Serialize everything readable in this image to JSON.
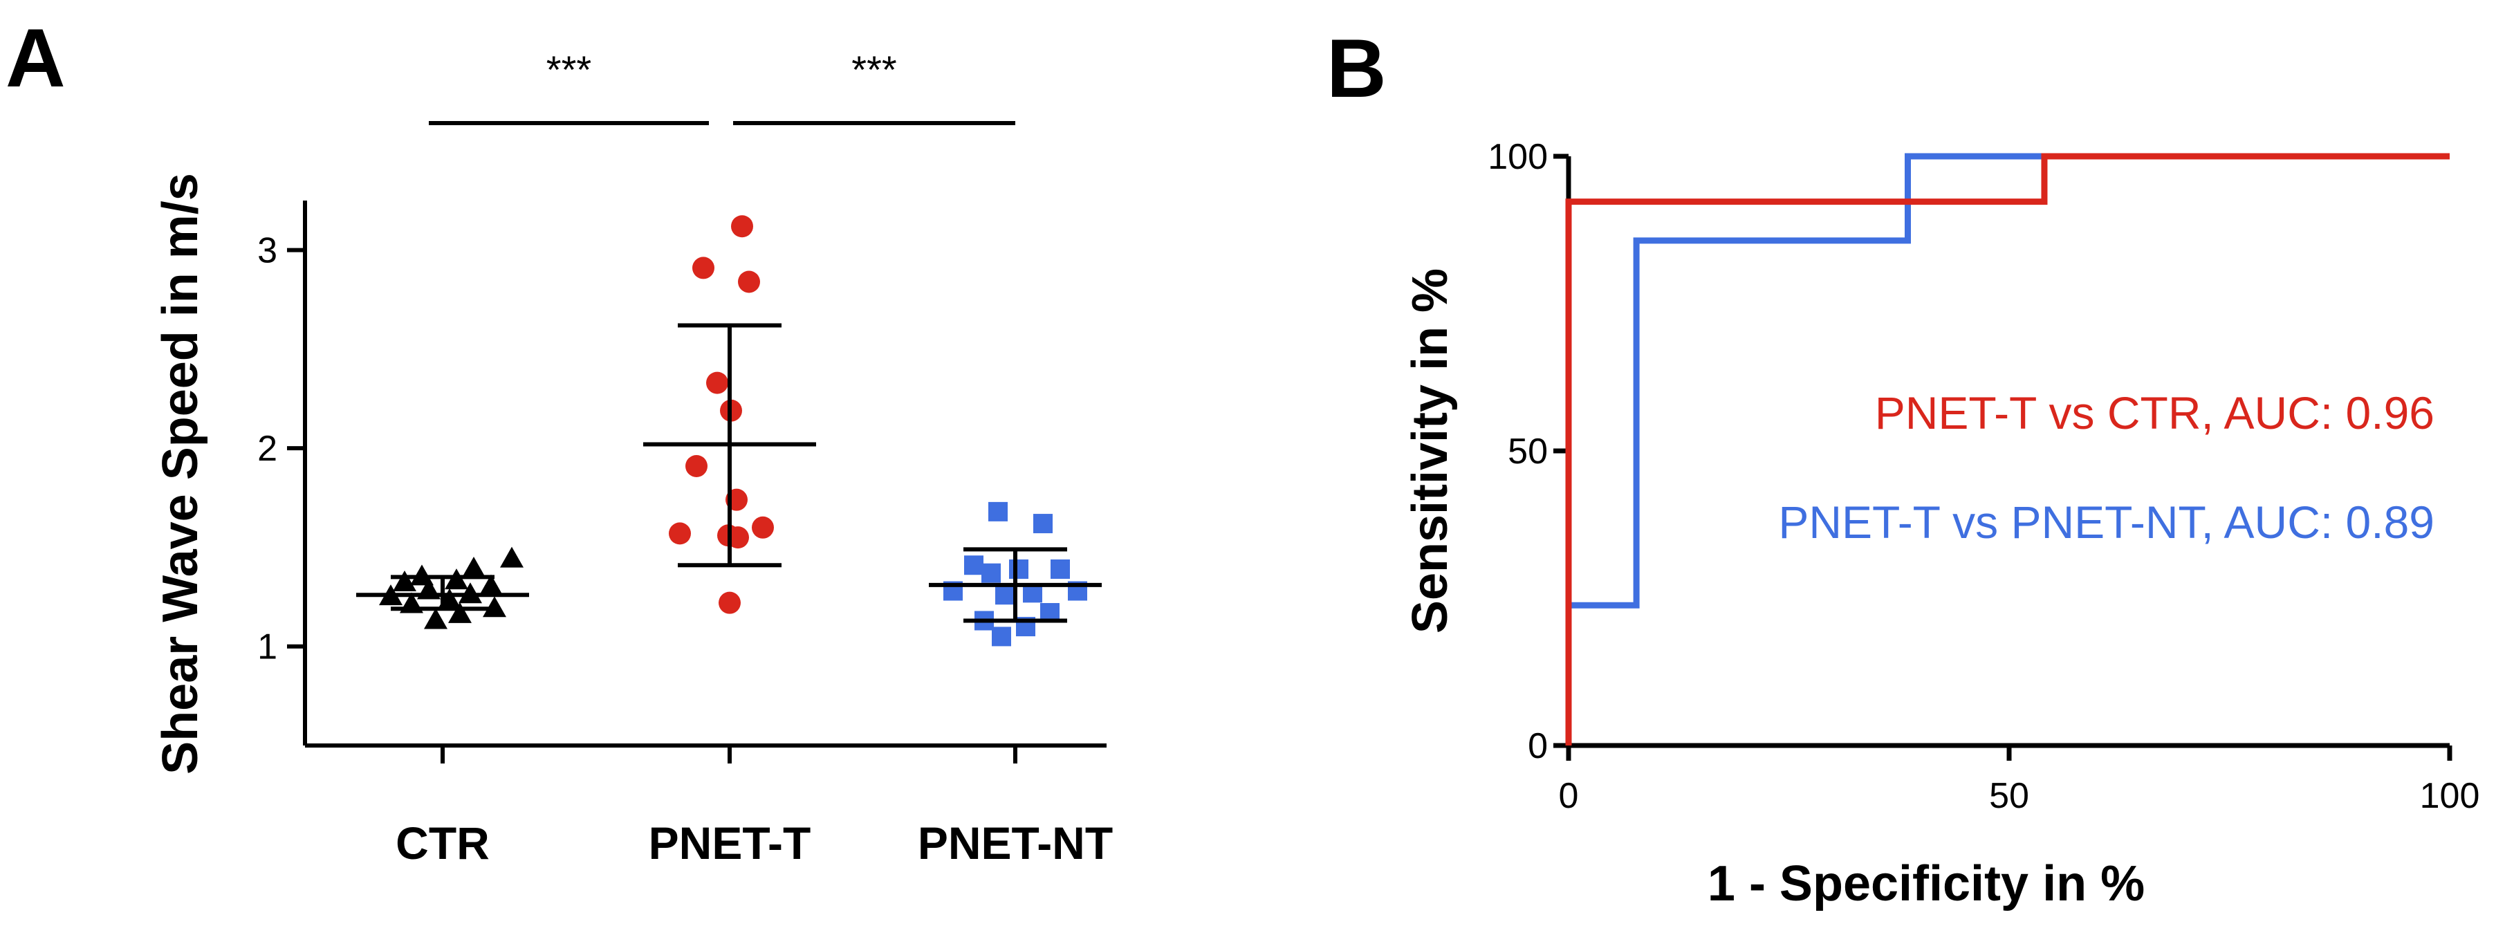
{
  "panels": {
    "a": {
      "letter": "A"
    },
    "b": {
      "letter": "B"
    }
  },
  "colors": {
    "ctr": "#000000",
    "pnet_t": "#d9261c",
    "pnet_nt": "#3f6fe0"
  },
  "chart_data": [
    {
      "type": "scatter",
      "panel": "A",
      "ylabel": "Shear Wave Speed in m/s",
      "xlabel": "",
      "ylim": [
        0.5,
        3.25
      ],
      "yticks": [
        1,
        2,
        3
      ],
      "categories": [
        "CTR",
        "PNET-T",
        "PNET-NT"
      ],
      "series": [
        {
          "category": "CTR",
          "marker": "triangle",
          "color": "#000000",
          "values": [
            1.39,
            1.35,
            1.33,
            1.32,
            1.3,
            1.28,
            1.26,
            1.25,
            1.23,
            1.21,
            1.19,
            1.16,
            1.13,
            1.44
          ],
          "mean": 1.26,
          "sd_low": 1.19,
          "sd_high": 1.35
        },
        {
          "category": "PNET-T",
          "marker": "circle",
          "color": "#d9261c",
          "values": [
            3.12,
            2.91,
            2.84,
            2.33,
            2.19,
            1.91,
            1.74,
            1.6,
            1.57,
            1.56,
            1.55,
            1.22
          ],
          "mean": 2.02,
          "sd_low": 1.41,
          "sd_high": 2.62
        },
        {
          "category": "PNET-NT",
          "marker": "square",
          "color": "#3f6fe0",
          "values": [
            1.68,
            1.62,
            1.41,
            1.39,
            1.39,
            1.37,
            1.28,
            1.28,
            1.27,
            1.26,
            1.17,
            1.13,
            1.1,
            1.05
          ],
          "mean": 1.31,
          "sd_low": 1.13,
          "sd_high": 1.49
        }
      ],
      "comparisons": [
        {
          "from": "CTR",
          "to": "PNET-T",
          "label": "***"
        },
        {
          "from": "PNET-T",
          "to": "PNET-NT",
          "label": "***"
        }
      ]
    },
    {
      "type": "line",
      "panel": "B",
      "xlabel": "1 - Specificity in %",
      "ylabel": "Sensitivity in %",
      "xlim": [
        0,
        100
      ],
      "ylim": [
        0,
        100
      ],
      "xticks": [
        0,
        50,
        100
      ],
      "yticks": [
        0,
        50,
        100
      ],
      "series": [
        {
          "label": "PNET-T vs CTR, AUC: 0.96",
          "color": "#d9261c",
          "x": [
            0,
            0,
            54,
            54,
            100
          ],
          "y": [
            0,
            92.3,
            92.3,
            100,
            100
          ]
        },
        {
          "label": "PNET-T vs PNET-NT, AUC: 0.89",
          "color": "#3f6fe0",
          "x": [
            0,
            0,
            7.7,
            7.7,
            38.5,
            38.5,
            100
          ],
          "y": [
            0,
            23.8,
            23.8,
            85.7,
            85.7,
            100,
            100
          ]
        }
      ]
    }
  ]
}
